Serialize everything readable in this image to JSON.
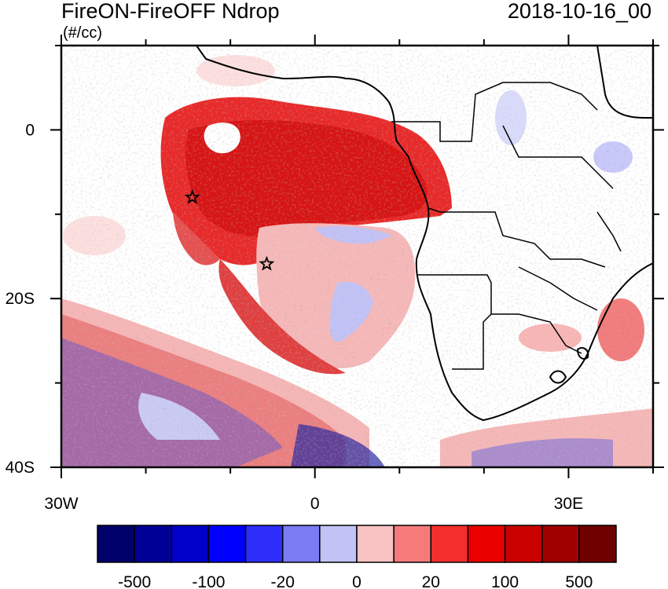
{
  "title": {
    "variable": "FireON-FireOFF Ndrop",
    "units": "(#/cc)",
    "datetime": "2018-10-16_00"
  },
  "axes": {
    "lon_labels": [
      {
        "value": -30,
        "text": "30W"
      },
      {
        "value": 0,
        "text": "0"
      },
      {
        "value": 30,
        "text": "30E"
      }
    ],
    "lat_labels": [
      {
        "value": 0,
        "text": "0"
      },
      {
        "value": -20,
        "text": "20S"
      },
      {
        "value": -40,
        "text": "40S"
      }
    ],
    "lon_range": [
      -30,
      40
    ],
    "lat_range": [
      -40,
      10
    ]
  },
  "colorbar": {
    "colors": [
      "#00006b",
      "#000096",
      "#0000c8",
      "#0000ff",
      "#2e2efa",
      "#7b7bf3",
      "#c2c2f6",
      "#f9c2c2",
      "#f57b7b",
      "#f52e2e",
      "#eb0000",
      "#c80000",
      "#a00000",
      "#6e0000"
    ],
    "labels": [
      {
        "boundary": 1,
        "text": "-500"
      },
      {
        "boundary": 3,
        "text": "-100"
      },
      {
        "boundary": 5,
        "text": "-20"
      },
      {
        "boundary": 7,
        "text": "0"
      },
      {
        "boundary": 9,
        "text": "20"
      },
      {
        "boundary": 11,
        "text": "100"
      },
      {
        "boundary": 13,
        "text": "500"
      }
    ]
  },
  "markers": [
    {
      "name": "star-marker",
      "lon": -14.5,
      "lat": -8.0
    },
    {
      "name": "star-marker",
      "lon": -5.7,
      "lat": -15.9
    }
  ]
}
